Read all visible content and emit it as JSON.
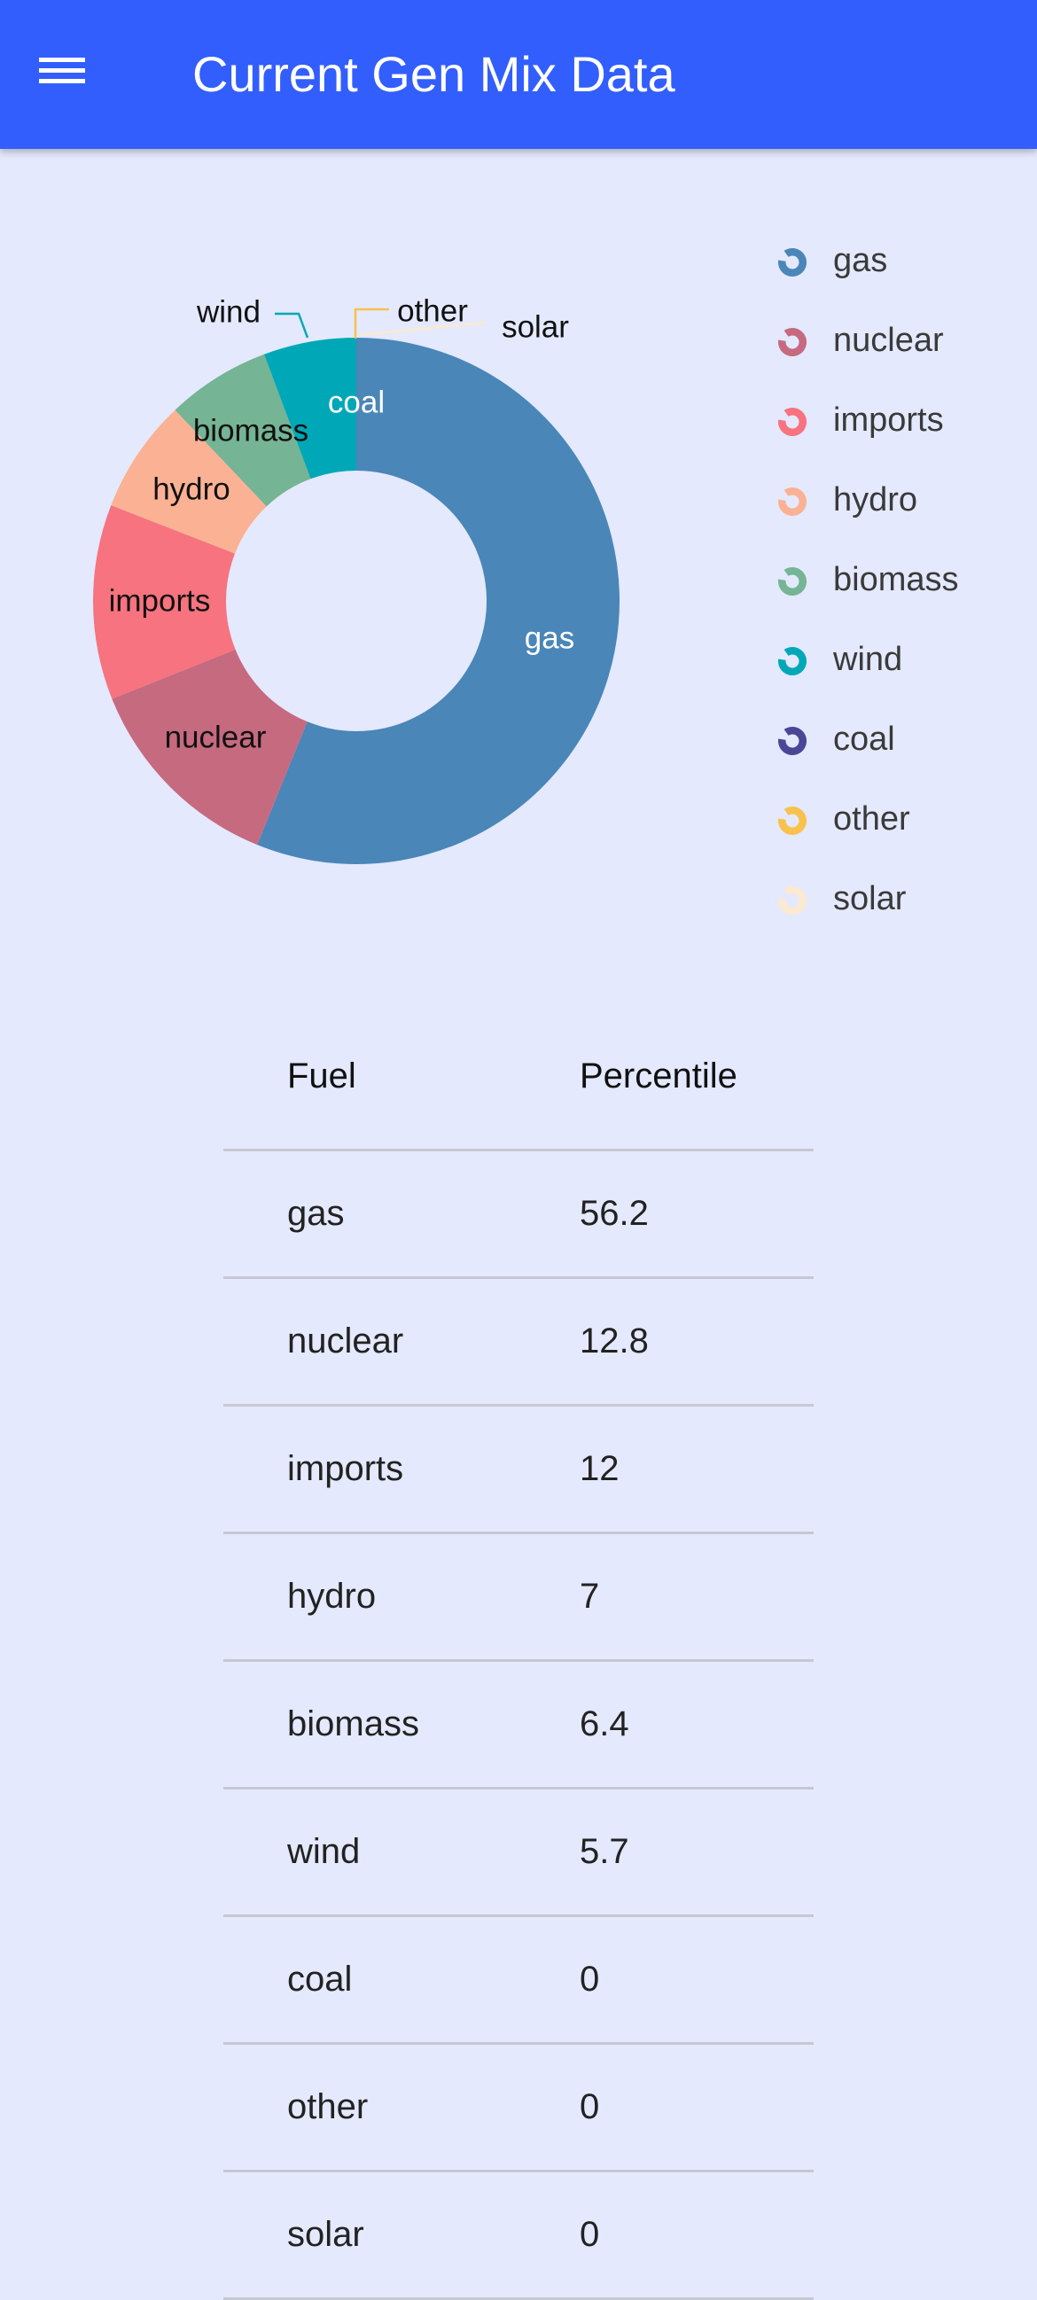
{
  "app_bar": {
    "title": "Current Gen Mix Data",
    "background": "#325efd",
    "menu_icon": "hamburger-menu-icon"
  },
  "chart_data": {
    "type": "pie",
    "donut": true,
    "legend_placement": "right",
    "series": [
      {
        "name": "gas",
        "value": 56.2,
        "color": "#4a86b8",
        "label_color": "#ffffff"
      },
      {
        "name": "nuclear",
        "value": 12.8,
        "color": "#c66a80",
        "label_color": "#111111"
      },
      {
        "name": "imports",
        "value": 12,
        "color": "#f6737f",
        "label_color": "#111111"
      },
      {
        "name": "hydro",
        "value": 7,
        "color": "#fbb193",
        "label_color": "#111111"
      },
      {
        "name": "biomass",
        "value": 6.4,
        "color": "#75b494",
        "label_color": "#111111"
      },
      {
        "name": "wind",
        "value": 5.7,
        "color": "#00a8b7",
        "label_color": "#111111"
      },
      {
        "name": "coal",
        "value": 0,
        "color": "#4a4796",
        "label_color": "#ffffff"
      },
      {
        "name": "other",
        "value": 0,
        "color": "#f8c24d",
        "label_color": "#111111"
      },
      {
        "name": "solar",
        "value": 0,
        "color": "#fbe9d0",
        "label_color": "#111111"
      }
    ]
  },
  "table": {
    "headers": [
      "Fuel",
      "Percentile"
    ],
    "rows": [
      [
        "gas",
        "56.2"
      ],
      [
        "nuclear",
        "12.8"
      ],
      [
        "imports",
        "12"
      ],
      [
        "hydro",
        "7"
      ],
      [
        "biomass",
        "6.4"
      ],
      [
        "wind",
        "5.7"
      ],
      [
        "coal",
        "0"
      ],
      [
        "other",
        "0"
      ],
      [
        "solar",
        "0"
      ]
    ]
  }
}
